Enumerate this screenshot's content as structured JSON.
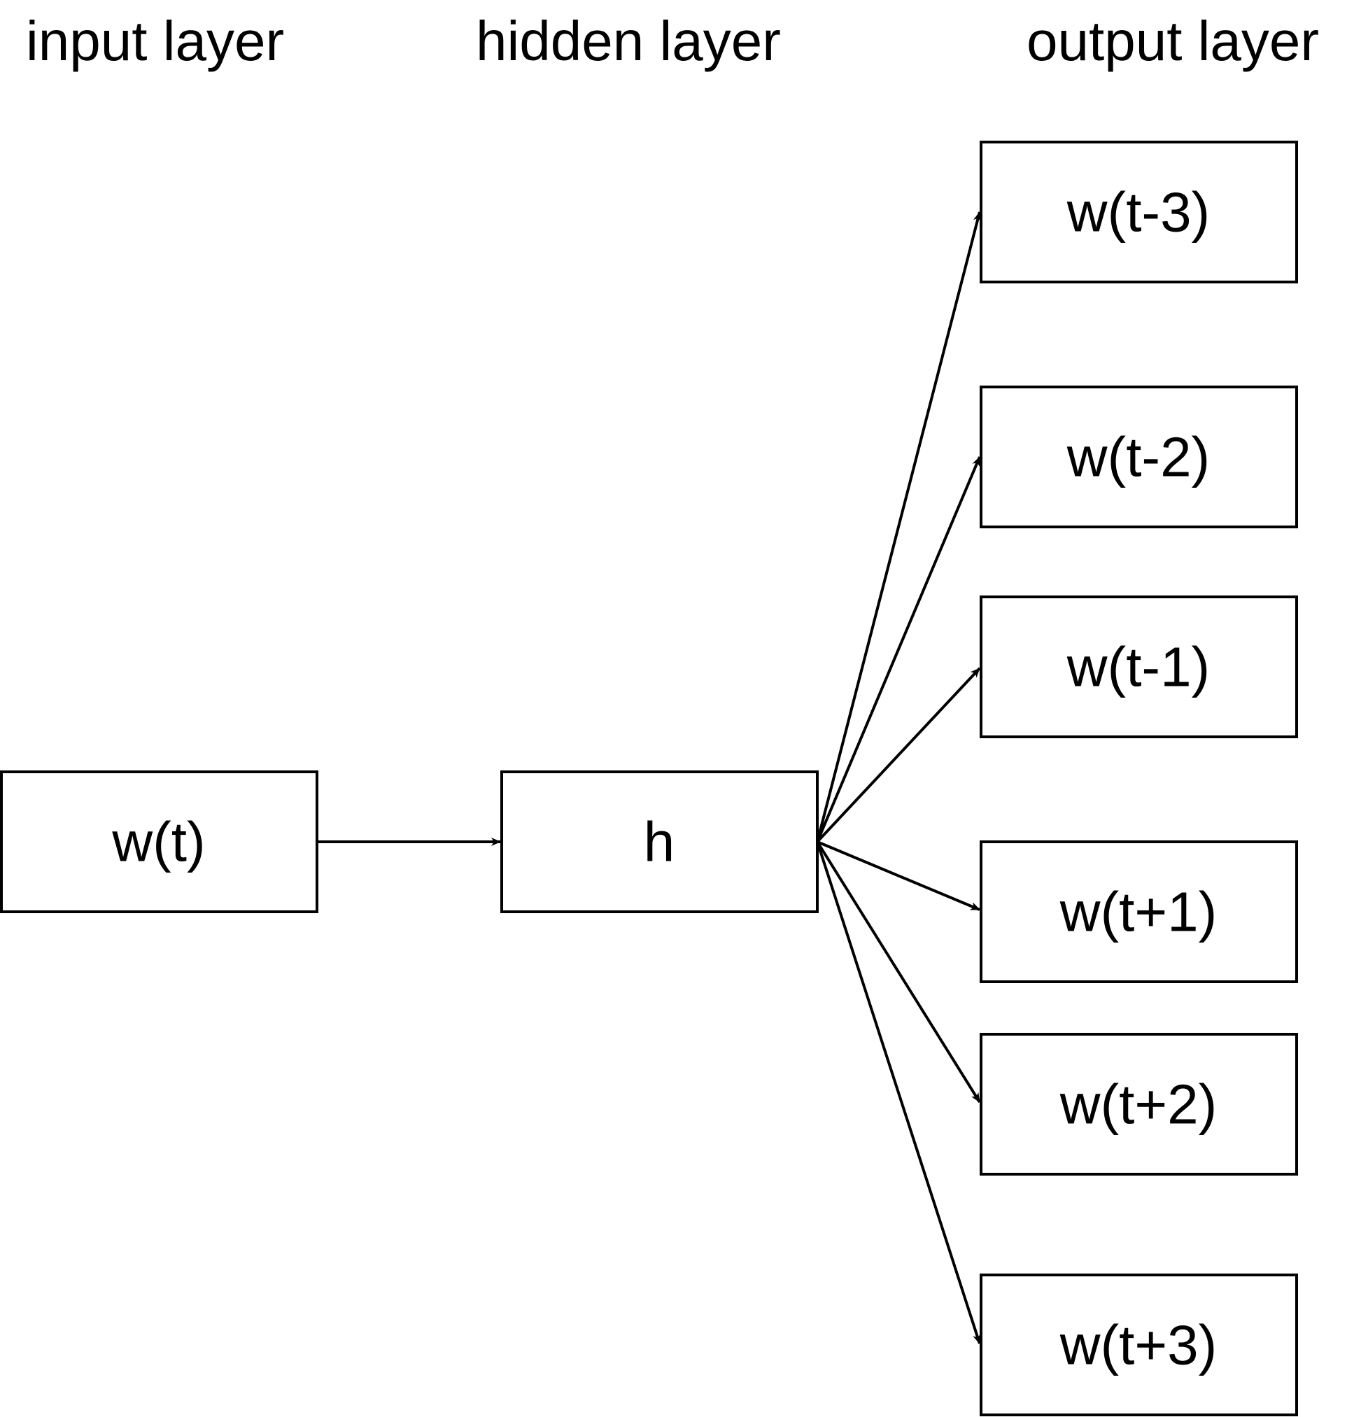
{
  "headings": {
    "input": "input layer",
    "hidden": "hidden layer",
    "output": "output layer"
  },
  "nodes": {
    "input": "w(t)",
    "hidden": "h",
    "outputs": [
      "w(t-3)",
      "w(t-2)",
      "w(t-1)",
      "w(t+1)",
      "w(t+2)",
      "w(t+3)"
    ]
  },
  "colors": {
    "stroke": "#000000",
    "fill": "#ffffff",
    "text": "#000000"
  }
}
